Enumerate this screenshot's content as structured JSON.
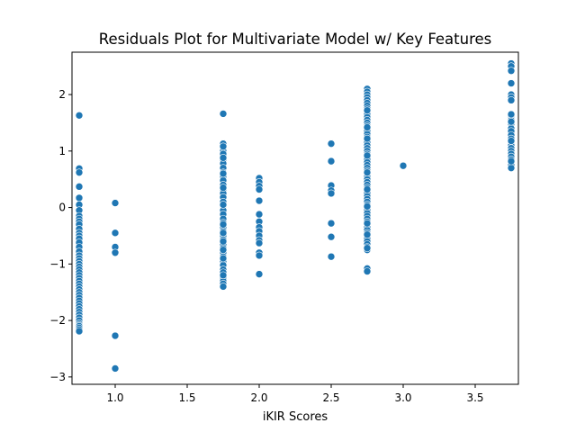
{
  "chart_data": {
    "type": "scatter",
    "title": "Residuals Plot for Multivariate Model w/ Key Features",
    "xlabel": "iKIR Scores",
    "ylabel": "",
    "xlim": [
      0.7,
      3.8
    ],
    "ylim": [
      -3.13,
      2.75
    ],
    "xticks": [
      1.0,
      1.5,
      2.0,
      2.5,
      3.0,
      3.5
    ],
    "xtick_labels": [
      "1.0",
      "1.5",
      "2.0",
      "2.5",
      "3.0",
      "3.5"
    ],
    "yticks": [
      -3,
      -2,
      -1,
      0,
      1,
      2
    ],
    "ytick_labels": [
      "−3",
      "−2",
      "−1",
      "0",
      "1",
      "2"
    ],
    "grid": false,
    "color": "#1f77b4",
    "series": [
      {
        "x": [
          0.75,
          0.75,
          0.75,
          0.75,
          0.75,
          0.75,
          0.75,
          0.75,
          0.75,
          0.75,
          0.75,
          0.75,
          0.75,
          0.75,
          0.75,
          0.75,
          0.75,
          0.75,
          0.75,
          0.75,
          0.75,
          0.75,
          0.75,
          0.75,
          0.75,
          0.75,
          0.75,
          0.75,
          0.75,
          0.75,
          0.75,
          0.75,
          0.75,
          0.75,
          0.75,
          0.75,
          0.75,
          0.75,
          0.75,
          0.75,
          0.75,
          0.75,
          0.75,
          0.75,
          0.75,
          0.75,
          0.75,
          0.75,
          1.0,
          1.0,
          1.0,
          1.0,
          1.0,
          1.0,
          1.75,
          1.75,
          1.75,
          1.75,
          1.75,
          1.75,
          1.75,
          1.75,
          1.75,
          1.75,
          1.75,
          1.75,
          1.75,
          1.75,
          1.75,
          1.75,
          1.75,
          1.75,
          1.75,
          1.75,
          1.75,
          1.75,
          1.75,
          1.75,
          1.75,
          1.75,
          1.75,
          1.75,
          1.75,
          1.75,
          1.75,
          1.75,
          1.75,
          1.75,
          1.75,
          1.75,
          1.75,
          1.75,
          1.75,
          1.75,
          1.75,
          1.75,
          1.75,
          1.75,
          1.75,
          1.75,
          1.75,
          1.75,
          1.75,
          1.75,
          2.0,
          2.0,
          2.0,
          2.0,
          2.0,
          2.0,
          2.0,
          2.0,
          2.0,
          2.0,
          2.0,
          2.0,
          2.0,
          2.0,
          2.0,
          2.5,
          2.5,
          2.5,
          2.5,
          2.5,
          2.5,
          2.5,
          2.5,
          2.75,
          2.75,
          2.75,
          2.75,
          2.75,
          2.75,
          2.75,
          2.75,
          2.75,
          2.75,
          2.75,
          2.75,
          2.75,
          2.75,
          2.75,
          2.75,
          2.75,
          2.75,
          2.75,
          2.75,
          2.75,
          2.75,
          2.75,
          2.75,
          2.75,
          2.75,
          2.75,
          2.75,
          2.75,
          2.75,
          2.75,
          2.75,
          2.75,
          2.75,
          2.75,
          2.75,
          2.75,
          2.75,
          2.75,
          2.75,
          2.75,
          2.75,
          2.75,
          2.75,
          2.75,
          2.75,
          2.75,
          2.75,
          2.75,
          2.75,
          2.75,
          2.75,
          2.75,
          2.75,
          2.75,
          2.75,
          2.75,
          2.75,
          2.75,
          2.75,
          2.75,
          2.75,
          2.75,
          2.75,
          2.75,
          2.75,
          2.75,
          2.75,
          2.75,
          2.75,
          3.0,
          3.75,
          3.75,
          3.75,
          3.75,
          3.75,
          3.75,
          3.75,
          3.75,
          3.75,
          3.75,
          3.75,
          3.75,
          3.75,
          3.75,
          3.75,
          3.75,
          3.75,
          3.75,
          3.75,
          3.75,
          3.75,
          3.75,
          3.75,
          3.75,
          3.75,
          3.75,
          3.75,
          3.75
        ],
        "y": [
          1.63,
          0.69,
          0.62,
          0.37,
          0.17,
          0.05,
          -0.05,
          -0.15,
          -0.2,
          -0.25,
          -0.3,
          -0.38,
          -0.45,
          -0.5,
          -0.55,
          -0.62,
          -0.7,
          -0.78,
          -0.85,
          -0.9,
          -0.95,
          -1.0,
          -1.05,
          -1.1,
          -1.15,
          -1.2,
          -1.25,
          -1.3,
          -1.35,
          -1.4,
          -1.45,
          -1.5,
          -1.55,
          -1.6,
          -1.65,
          -1.7,
          -1.75,
          -1.8,
          -1.85,
          -1.9,
          -1.95,
          -2.0,
          -2.05,
          -2.08,
          -2.1,
          -2.13,
          -2.16,
          -2.19,
          0.08,
          -0.45,
          -0.7,
          -0.8,
          -2.27,
          -2.85,
          1.66,
          1.13,
          1.05,
          1.0,
          0.92,
          0.85,
          0.78,
          0.7,
          0.62,
          0.55,
          0.48,
          0.4,
          0.32,
          0.25,
          0.18,
          0.1,
          0.03,
          -0.05,
          -0.12,
          -0.2,
          -0.27,
          -0.35,
          -0.42,
          -0.5,
          -0.57,
          -0.65,
          -0.72,
          -0.8,
          -0.87,
          -0.95,
          -1.02,
          -1.1,
          -1.17,
          -1.25,
          -1.3,
          -1.35,
          -1.4,
          1.08,
          0.95,
          0.88,
          0.6,
          0.35,
          0.05,
          -0.3,
          -0.45,
          -0.6,
          -0.75,
          -0.9,
          -1.15,
          -1.2,
          0.52,
          0.45,
          0.38,
          0.32,
          0.12,
          -0.12,
          -0.25,
          -0.35,
          -0.42,
          -0.5,
          -0.58,
          -0.63,
          -0.8,
          -0.85,
          -1.18,
          1.13,
          0.82,
          0.39,
          0.3,
          0.25,
          -0.28,
          -0.52,
          -0.87,
          2.1,
          2.05,
          2.0,
          1.95,
          1.9,
          1.85,
          1.8,
          1.75,
          1.7,
          1.65,
          1.6,
          1.55,
          1.5,
          1.45,
          1.4,
          1.35,
          1.3,
          1.25,
          1.2,
          1.15,
          1.1,
          1.05,
          1.0,
          0.95,
          0.9,
          0.85,
          0.8,
          0.75,
          0.7,
          0.65,
          0.6,
          0.55,
          0.5,
          0.45,
          0.4,
          0.35,
          0.3,
          0.25,
          0.2,
          0.15,
          0.1,
          0.05,
          0.0,
          -0.05,
          -0.1,
          -0.15,
          -0.2,
          -0.25,
          -0.3,
          -0.35,
          -0.4,
          -0.45,
          -0.5,
          -0.55,
          -0.6,
          -0.65,
          -0.7,
          -0.75,
          -1.08,
          -1.13,
          1.72,
          1.42,
          1.22,
          0.92,
          0.62,
          0.32,
          0.02,
          -0.28,
          -0.48,
          -0.72,
          0.74,
          2.55,
          2.5,
          2.42,
          2.2,
          2.0,
          1.95,
          1.9,
          1.62,
          1.55,
          1.48,
          1.4,
          1.35,
          1.28,
          1.22,
          1.15,
          1.1,
          1.05,
          1.0,
          0.95,
          0.9,
          0.85,
          0.8,
          0.75,
          0.7,
          1.65,
          1.52,
          1.18,
          0.82
        ]
      }
    ]
  }
}
